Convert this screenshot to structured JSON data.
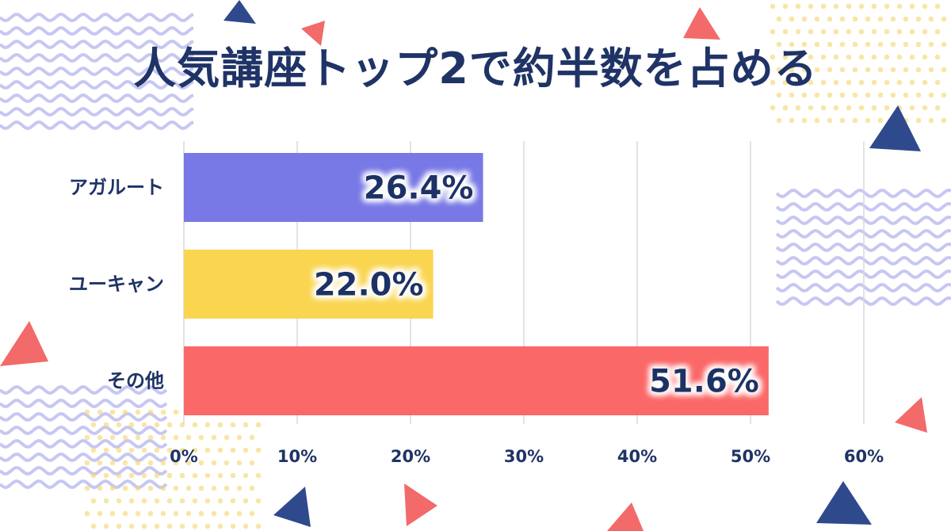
{
  "title": "人気講座トップ2で約半数を占める",
  "colors": {
    "text": "#1f3366",
    "grid": "#d9d9de",
    "wave": "#8f8fe8",
    "dots": "#f3d66a",
    "tri_navy": "#2f4a8c",
    "tri_red": "#f26a6a"
  },
  "chart_data": {
    "type": "bar",
    "orientation": "horizontal",
    "title": "人気講座トップ2で約半数を占める",
    "categories": [
      "アガルート",
      "ユーキャン",
      "その他"
    ],
    "values": [
      26.4,
      22.0,
      51.6
    ],
    "value_labels": [
      "26.4%",
      "22.0%",
      "51.6%"
    ],
    "bar_colors": [
      "#7878e6",
      "#f9d550",
      "#fb6868"
    ],
    "xlim": [
      0,
      60
    ],
    "xticks": [
      0,
      10,
      20,
      30,
      40,
      50,
      60
    ],
    "xtick_labels": [
      "0%",
      "10%",
      "20%",
      "30%",
      "40%",
      "50%",
      "60%"
    ],
    "xlabel": "",
    "ylabel": "",
    "grid": "vertical",
    "legend": "none"
  }
}
